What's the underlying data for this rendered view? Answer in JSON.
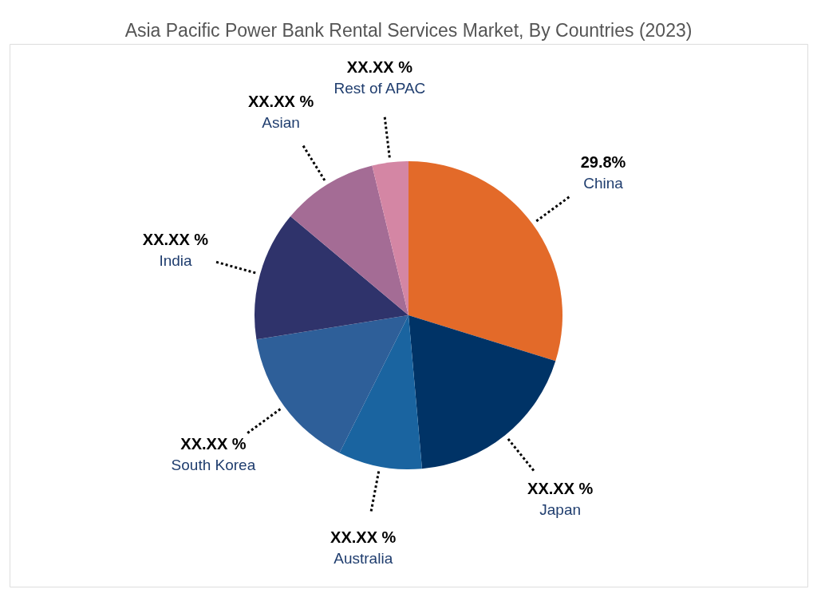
{
  "chart_data": {
    "type": "pie",
    "title": "Asia Pacific Power Bank Rental Services Market, By Countries (2023)",
    "categories": [
      "China",
      "Japan",
      "Australia",
      "South Korea",
      "India",
      "Asian",
      "Rest of APAC"
    ],
    "values": [
      29.8,
      18.8,
      8.8,
      15.1,
      13.6,
      10.1,
      3.8
    ],
    "colors": [
      "#e36a29",
      "#003366",
      "#1a64a0",
      "#2e5f99",
      "#2f336b",
      "#a46c95",
      "#d486a4"
    ],
    "value_labels": [
      "29.8%",
      "XX.XX %",
      "XX.XX %",
      "XX.XX %",
      "XX.XX %",
      "XX.XX %",
      "XX.XX %"
    ],
    "legend": false
  }
}
